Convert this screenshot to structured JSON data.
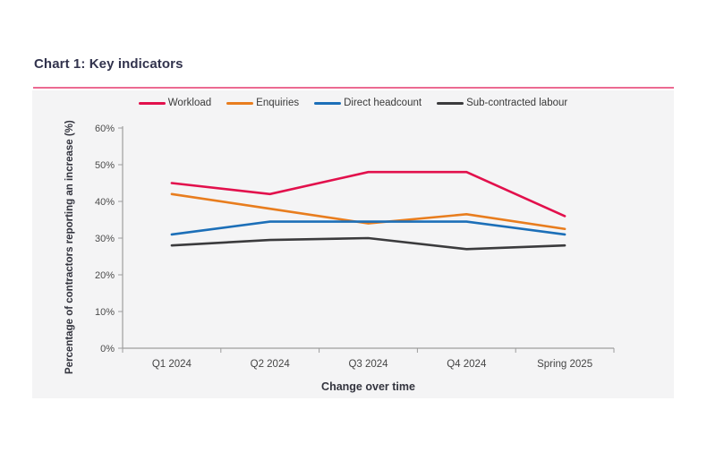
{
  "page": {
    "title": "Chart 1: Key indicators"
  },
  "colors": {
    "title_text": "#32334d",
    "title_rule_pink": "#ec6a92",
    "panel_background": "#f4f4f5",
    "axis": "#9d9d9d",
    "tick_text": "#4c4c4c",
    "workload_red": "#e2104c",
    "enquiries_orange": "#e87d1e",
    "direct_headcount_blue": "#1c6fb8",
    "subcontracted_dark": "#3b3b3d"
  },
  "chart_data": {
    "type": "line",
    "title": "Chart 1: Key indicators",
    "xlabel": "Change over time",
    "ylabel": "Percentage of contractors reporting an increase (%)",
    "categories": [
      "Q1 2024",
      "Q2 2024",
      "Q3 2024",
      "Q4 2024",
      "Spring 2025"
    ],
    "series": [
      {
        "name": "Workload",
        "color": "#e2104c",
        "values": [
          45,
          42,
          48,
          48,
          36
        ]
      },
      {
        "name": "Enquiries",
        "color": "#e87d1e",
        "values": [
          42,
          38,
          34,
          36.5,
          32.5
        ]
      },
      {
        "name": "Direct headcount",
        "color": "#1c6fb8",
        "values": [
          31,
          34.5,
          34.5,
          34.5,
          31
        ]
      },
      {
        "name": "Sub-contracted labour",
        "color": "#3b3b3d",
        "values": [
          28,
          29.5,
          30,
          27,
          28
        ]
      }
    ],
    "ylim": [
      0,
      60
    ],
    "ytick_step": 10,
    "ytick_labels": [
      "0%",
      "10%",
      "20%",
      "30%",
      "40%",
      "50%",
      "60%"
    ],
    "grid": false,
    "legend_position": "top"
  }
}
